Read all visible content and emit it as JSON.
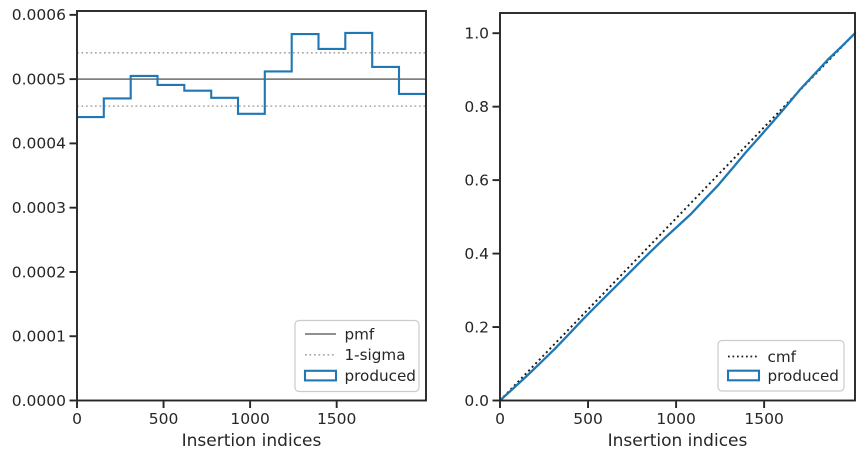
{
  "colors": {
    "produced": "#1f77b4",
    "pmf": "#808080",
    "sigma": "#a6a6a6",
    "cmf": "#1a1a1a",
    "spine": "#262626",
    "text": "#262626",
    "legend_border": "#cccccc",
    "background": "#ffffff"
  },
  "chart_data": [
    {
      "id": "pmf",
      "type": "step-histogram",
      "title": "",
      "xlabel": "Insertion indices",
      "ylabel": "",
      "xlim": [
        0,
        2016
      ],
      "ylim": [
        0,
        0.000606
      ],
      "grid": false,
      "xticks": [
        {
          "v": 0,
          "label": "0"
        },
        {
          "v": 500,
          "label": "500"
        },
        {
          "v": 1000,
          "label": "1000"
        },
        {
          "v": 1500,
          "label": "1500"
        }
      ],
      "yticks": [
        {
          "v": 0.0,
          "label": "0.0000"
        },
        {
          "v": 0.0001,
          "label": "0.0001"
        },
        {
          "v": 0.0002,
          "label": "0.0002"
        },
        {
          "v": 0.0003,
          "label": "0.0003"
        },
        {
          "v": 0.0004,
          "label": "0.0004"
        },
        {
          "v": 0.0005,
          "label": "0.0005"
        },
        {
          "v": 0.0006,
          "label": "0.0006"
        }
      ],
      "series": {
        "pmf_value": 0.0005,
        "sigma_upper": 0.000541,
        "sigma_lower": 0.000458,
        "bin_edges": [
          0,
          155,
          310,
          465,
          620,
          775,
          930,
          1085,
          1240,
          1395,
          1550,
          1705,
          1860,
          2016
        ],
        "produced_density": [
          0.000441,
          0.00047,
          0.000505,
          0.000491,
          0.000482,
          0.000471,
          0.000446,
          0.000512,
          0.00057,
          0.000547,
          0.000572,
          0.000519,
          0.000477
        ]
      },
      "legend": {
        "position": "lower right",
        "items": [
          {
            "label": "pmf",
            "swatch": "line",
            "color": "pmf",
            "dash": "solid"
          },
          {
            "label": "1-sigma",
            "swatch": "line",
            "color": "sigma",
            "dash": "dotted"
          },
          {
            "label": "produced",
            "swatch": "rect",
            "color": "produced",
            "dash": "solid"
          }
        ]
      }
    },
    {
      "id": "cmf",
      "type": "line",
      "title": "",
      "xlabel": "Insertion indices",
      "ylabel": "",
      "xlim": [
        0,
        2016
      ],
      "ylim": [
        0,
        1.055
      ],
      "grid": false,
      "xticks": [
        {
          "v": 0,
          "label": "0"
        },
        {
          "v": 500,
          "label": "500"
        },
        {
          "v": 1000,
          "label": "1000"
        },
        {
          "v": 1500,
          "label": "1500"
        }
      ],
      "yticks": [
        {
          "v": 0.0,
          "label": "0.0"
        },
        {
          "v": 0.2,
          "label": "0.2"
        },
        {
          "v": 0.4,
          "label": "0.4"
        },
        {
          "v": 0.6,
          "label": "0.6"
        },
        {
          "v": 0.8,
          "label": "0.8"
        },
        {
          "v": 1.0,
          "label": "1.0"
        }
      ],
      "series": {
        "cmf_line": {
          "x": [
            0,
            2016
          ],
          "y": [
            0,
            1.0
          ]
        },
        "produced_cdf": [
          [
            0,
            0
          ],
          [
            78,
            0.034
          ],
          [
            155,
            0.068
          ],
          [
            233,
            0.104
          ],
          [
            310,
            0.14
          ],
          [
            388,
            0.179
          ],
          [
            465,
            0.218
          ],
          [
            543,
            0.256
          ],
          [
            620,
            0.293
          ],
          [
            698,
            0.33
          ],
          [
            775,
            0.367
          ],
          [
            853,
            0.404
          ],
          [
            930,
            0.44
          ],
          [
            1008,
            0.474
          ],
          [
            1085,
            0.508
          ],
          [
            1163,
            0.548
          ],
          [
            1240,
            0.587
          ],
          [
            1318,
            0.631
          ],
          [
            1395,
            0.675
          ],
          [
            1473,
            0.717
          ],
          [
            1550,
            0.759
          ],
          [
            1628,
            0.803
          ],
          [
            1705,
            0.847
          ],
          [
            1783,
            0.887
          ],
          [
            1860,
            0.927
          ],
          [
            1938,
            0.963
          ],
          [
            2016,
            1.0
          ]
        ]
      },
      "legend": {
        "position": "lower right",
        "items": [
          {
            "label": "cmf",
            "swatch": "line",
            "color": "cmf",
            "dash": "dotted"
          },
          {
            "label": "produced",
            "swatch": "rect",
            "color": "produced",
            "dash": "solid"
          }
        ]
      }
    }
  ]
}
